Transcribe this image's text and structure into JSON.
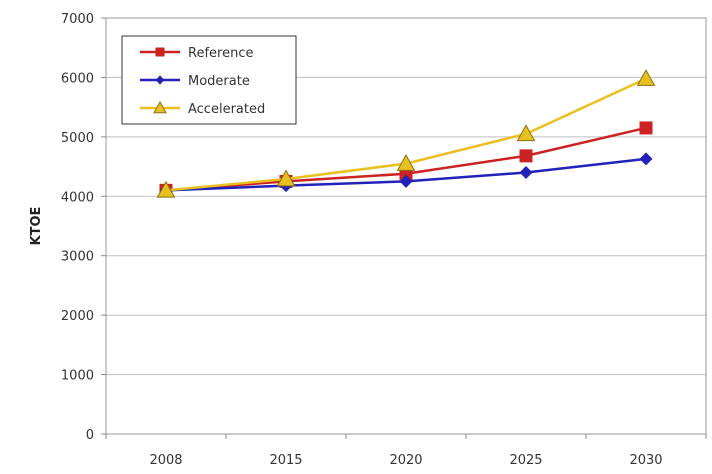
{
  "chart_data": {
    "type": "line",
    "title": "",
    "xlabel": "",
    "ylabel": "KTOE",
    "categories": [
      "2008",
      "2015",
      "2020",
      "2025",
      "2030"
    ],
    "ylim": [
      0,
      7000
    ],
    "yticks": [
      0,
      1000,
      2000,
      3000,
      4000,
      5000,
      6000,
      7000
    ],
    "grid": true,
    "legend_position": "top-left",
    "series": [
      {
        "name": "Reference",
        "color": "#cc2222",
        "marker": "square",
        "values": [
          4100,
          4250,
          4380,
          4680,
          5150
        ]
      },
      {
        "name": "Moderate",
        "color": "#2222bb",
        "marker": "diamond",
        "values": [
          4100,
          4180,
          4250,
          4400,
          4630
        ]
      },
      {
        "name": "Accelerated",
        "color": "#e8c020",
        "marker": "triangle",
        "values": [
          4100,
          4290,
          4550,
          5050,
          5980
        ]
      }
    ]
  }
}
